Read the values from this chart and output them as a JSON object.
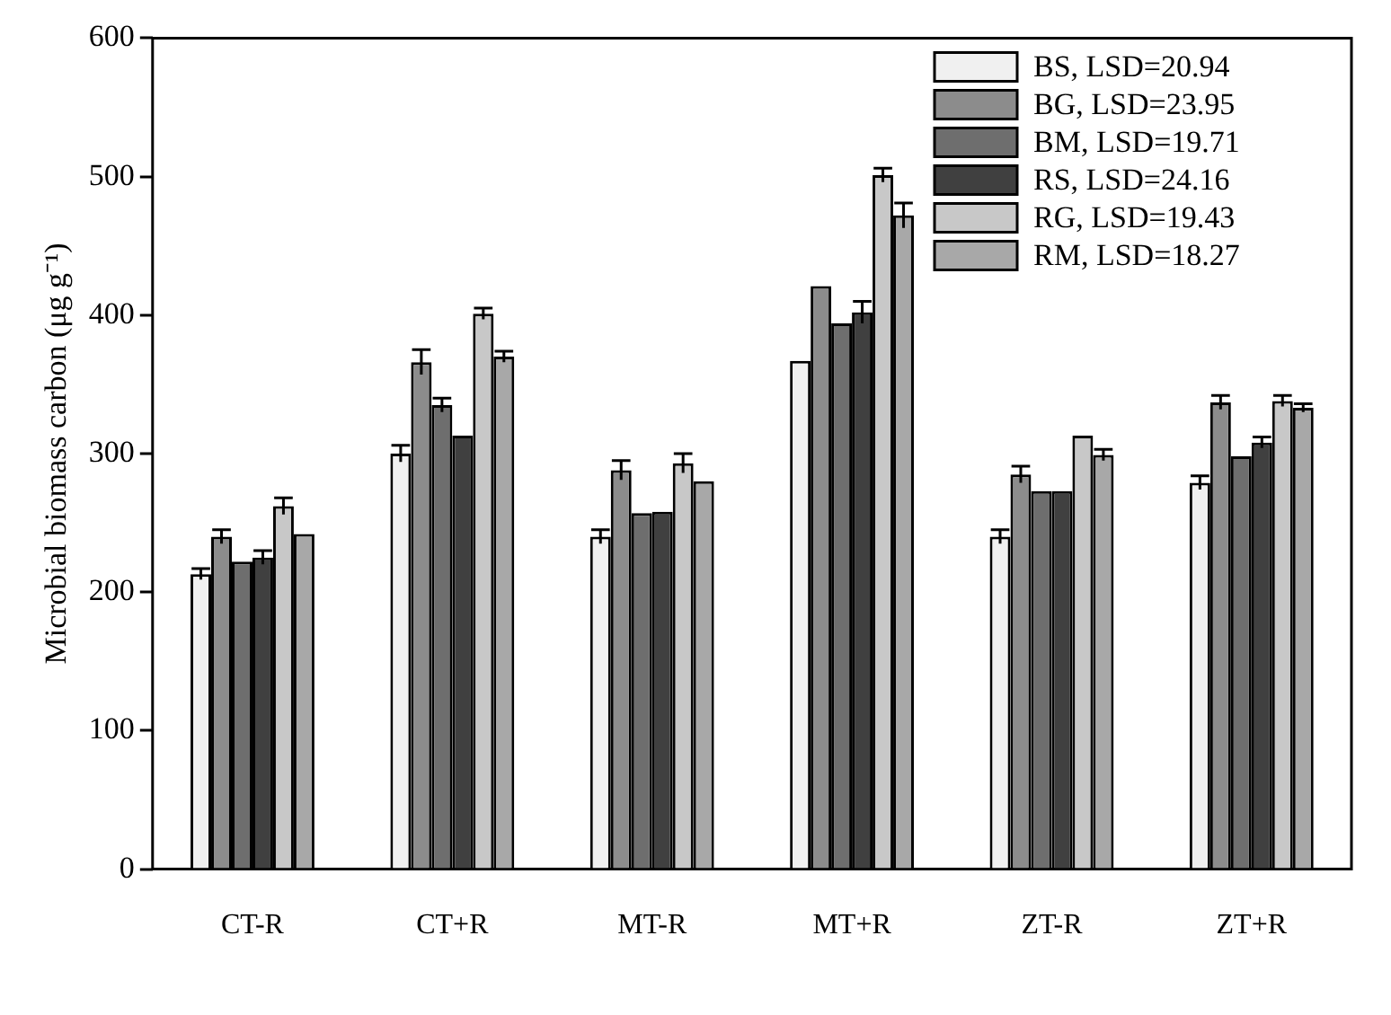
{
  "chart_data": {
    "type": "bar",
    "ylabel": "Microbial biomass carbon (μg g⁻¹)",
    "categories": [
      "CT-R",
      "CT+R",
      "MT-R",
      "MT+R",
      "ZT-R",
      "ZT+R"
    ],
    "series": [
      {
        "name": "BS, LSD=20.94",
        "color": "#f0f0f0",
        "values": [
          213,
          300,
          240,
          367,
          240,
          279
        ],
        "errors": [
          4,
          6,
          5,
          null,
          5,
          5
        ]
      },
      {
        "name": "BG, LSD=23.95",
        "color": "#8c8c8c",
        "values": [
          240,
          366,
          288,
          421,
          285,
          337
        ],
        "errors": [
          5,
          9,
          7,
          null,
          6,
          5
        ]
      },
      {
        "name": "BM, LSD=19.71",
        "color": "#6e6e6e",
        "values": [
          222,
          335,
          257,
          394,
          273,
          298
        ],
        "errors": [
          null,
          5,
          null,
          null,
          null,
          null
        ]
      },
      {
        "name": "RS, LSD=24.16",
        "color": "#404040",
        "values": [
          225,
          313,
          258,
          402,
          273,
          308
        ],
        "errors": [
          5,
          null,
          null,
          8,
          null,
          4
        ]
      },
      {
        "name": "RG, LSD=19.43",
        "color": "#c8c8c8",
        "values": [
          262,
          401,
          293,
          501,
          313,
          338
        ],
        "errors": [
          6,
          4,
          7,
          5,
          null,
          4
        ]
      },
      {
        "name": "RM, LSD=18.27",
        "color": "#a8a8a8",
        "values": [
          242,
          370,
          280,
          472,
          299,
          333
        ],
        "errors": [
          null,
          4,
          null,
          9,
          4,
          3
        ]
      }
    ],
    "ylim": [
      0,
      600
    ],
    "yticks": [
      0,
      100,
      200,
      300,
      400,
      500,
      600
    ],
    "grid": false,
    "legend": "top right"
  }
}
